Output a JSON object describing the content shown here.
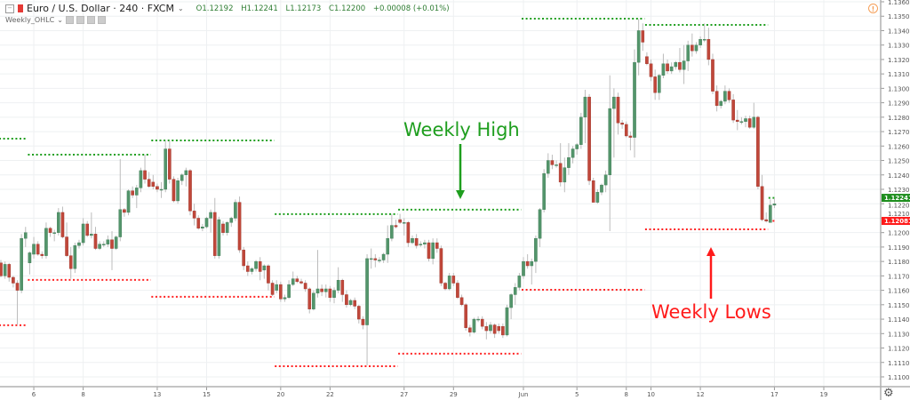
{
  "header": {
    "symbol": "Euro / U.S. Dollar · 240 · FXCM",
    "open": "O1.12192",
    "high": "H1.12241",
    "low": "L1.12173",
    "close": "C1.12200",
    "change": "+0.00008 (+0.01%)",
    "indicator": "Weekly_OHLC"
  },
  "colors": {
    "up": "#53956b",
    "down": "#c0473a",
    "weekly_high": "#1e9e1e",
    "weekly_low": "#ff2222",
    "grid": "#eef0f2"
  },
  "icons": {
    "warning": "warning-icon",
    "settings": "gear-icon"
  },
  "chart_data": {
    "type": "candlestick",
    "title": "",
    "ylim": [
      1.1095,
      1.1362
    ],
    "grid": true,
    "y_ticks": [
      "1.11000",
      "1.11100",
      "1.11200",
      "1.11300",
      "1.11400",
      "1.11500",
      "1.11600",
      "1.11700",
      "1.11800",
      "1.11900",
      "1.12000",
      "1.12100",
      "1.12200",
      "1.12300",
      "1.12400",
      "1.12500",
      "1.12600",
      "1.12700",
      "1.12800",
      "1.12900",
      "1.13000",
      "1.13100",
      "1.13200",
      "1.13300",
      "1.13400",
      "1.13500",
      "1.13600"
    ],
    "x_ticks": [
      {
        "label": "6",
        "bar": 9
      },
      {
        "label": "8",
        "bar": 21
      },
      {
        "label": "13",
        "bar": 39
      },
      {
        "label": "15",
        "bar": 51
      },
      {
        "label": "20",
        "bar": 69
      },
      {
        "label": "22",
        "bar": 81
      },
      {
        "label": "27",
        "bar": 99
      },
      {
        "label": "29",
        "bar": 111
      },
      {
        "label": "Jun",
        "bar": 128
      },
      {
        "label": "5",
        "bar": 141
      },
      {
        "label": "8",
        "bar": 153
      },
      {
        "label": "10",
        "bar": 159
      },
      {
        "label": "12",
        "bar": 171
      },
      {
        "label": "17",
        "bar": 189
      },
      {
        "label": "19",
        "bar": 201
      }
    ],
    "price_badges": [
      {
        "value": "1.12241",
        "color": "#1e8e1e"
      },
      {
        "value": "1.12081",
        "color": "#ff1a1a"
      }
    ],
    "ohlc": [
      [
        1.1179,
        1.1181,
        1.1169,
        1.117
      ],
      [
        1.117,
        1.118,
        1.1168,
        1.1178
      ],
      [
        1.1178,
        1.1179,
        1.1166,
        1.1169
      ],
      [
        1.1169,
        1.117,
        1.1162,
        1.1165
      ],
      [
        1.1165,
        1.1167,
        1.1136,
        1.116
      ],
      [
        1.116,
        1.1199,
        1.1158,
        1.1196
      ],
      [
        1.1196,
        1.1204,
        1.119,
        1.12
      ],
      [
        1.1179,
        1.1187,
        1.1171,
        1.1186
      ],
      [
        1.1185,
        1.1197,
        1.1182,
        1.1192
      ],
      [
        1.1192,
        1.1194,
        1.1184,
        1.1185
      ],
      [
        1.1185,
        1.1187,
        1.1182,
        1.1184
      ],
      [
        1.1184,
        1.1207,
        1.1182,
        1.1203
      ],
      [
        1.1203,
        1.1204,
        1.1197,
        1.12
      ],
      [
        1.12,
        1.1202,
        1.1194,
        1.12
      ],
      [
        1.12,
        1.1217,
        1.1198,
        1.1214
      ],
      [
        1.1214,
        1.1218,
        1.1196,
        1.1197
      ],
      [
        1.1197,
        1.1207,
        1.1183,
        1.1184
      ],
      [
        1.1184,
        1.119,
        1.1168,
        1.1175
      ],
      [
        1.1175,
        1.1193,
        1.1172,
        1.1191
      ],
      [
        1.1191,
        1.1195,
        1.1189,
        1.1193
      ],
      [
        1.1193,
        1.121,
        1.1191,
        1.1206
      ],
      [
        1.1206,
        1.1208,
        1.1197,
        1.1198
      ],
      [
        1.1198,
        1.1214,
        1.1196,
        1.1199
      ],
      [
        1.1199,
        1.1204,
        1.1188,
        1.1189
      ],
      [
        1.1189,
        1.1194,
        1.1188,
        1.1192
      ],
      [
        1.1192,
        1.1194,
        1.119,
        1.1192
      ],
      [
        1.1192,
        1.1198,
        1.119,
        1.1195
      ],
      [
        1.1195,
        1.1201,
        1.1174,
        1.1189
      ],
      [
        1.1189,
        1.1198,
        1.1188,
        1.1197
      ],
      [
        1.1197,
        1.1251,
        1.1194,
        1.1216
      ],
      [
        1.1216,
        1.1217,
        1.1211,
        1.1214
      ],
      [
        1.1214,
        1.123,
        1.1212,
        1.1229
      ],
      [
        1.1229,
        1.1232,
        1.1224,
        1.1226
      ],
      [
        1.1226,
        1.1233,
        1.1217,
        1.1231
      ],
      [
        1.1231,
        1.1245,
        1.1228,
        1.1243
      ],
      [
        1.1243,
        1.1254,
        1.1234,
        1.1237
      ],
      [
        1.1237,
        1.1242,
        1.1231,
        1.1232
      ],
      [
        1.1235,
        1.124,
        1.123,
        1.1232
      ],
      [
        1.1232,
        1.1234,
        1.1228,
        1.123
      ],
      [
        1.123,
        1.1235,
        1.1224,
        1.123
      ],
      [
        1.123,
        1.1264,
        1.1228,
        1.1258
      ],
      [
        1.1258,
        1.1264,
        1.1234,
        1.1237
      ],
      [
        1.1237,
        1.1239,
        1.1221,
        1.1222
      ],
      [
        1.1222,
        1.1238,
        1.122,
        1.1236
      ],
      [
        1.1236,
        1.1241,
        1.1233,
        1.124
      ],
      [
        1.124,
        1.1245,
        1.1232,
        1.1243
      ],
      [
        1.1243,
        1.1244,
        1.1212,
        1.1215
      ],
      [
        1.1215,
        1.122,
        1.1205,
        1.121
      ],
      [
        1.121,
        1.1212,
        1.1202,
        1.1203
      ],
      [
        1.1203,
        1.1206,
        1.1201,
        1.1204
      ],
      [
        1.1204,
        1.1211,
        1.1203,
        1.121
      ],
      [
        1.121,
        1.1216,
        1.12,
        1.1214
      ],
      [
        1.1214,
        1.1224,
        1.1182,
        1.1184
      ],
      [
        1.1184,
        1.1211,
        1.1182,
        1.1209
      ],
      [
        1.1206,
        1.1208,
        1.1198,
        1.12
      ],
      [
        1.12,
        1.1208,
        1.1198,
        1.1207
      ],
      [
        1.1207,
        1.1211,
        1.1204,
        1.121
      ],
      [
        1.121,
        1.1223,
        1.1208,
        1.1221
      ],
      [
        1.1221,
        1.1225,
        1.1186,
        1.1188
      ],
      [
        1.1188,
        1.119,
        1.1174,
        1.1177
      ],
      [
        1.1177,
        1.118,
        1.117,
        1.1173
      ],
      [
        1.1173,
        1.1176,
        1.1171,
        1.1175
      ],
      [
        1.1175,
        1.1181,
        1.1173,
        1.118
      ],
      [
        1.118,
        1.1183,
        1.1167,
        1.1173
      ],
      [
        1.1174,
        1.1178,
        1.1168,
        1.1177
      ],
      [
        1.1177,
        1.1178,
        1.116,
        1.1165
      ],
      [
        1.1165,
        1.1167,
        1.1156,
        1.1157
      ],
      [
        1.116,
        1.1167,
        1.1158,
        1.1164
      ],
      [
        1.1164,
        1.1166,
        1.1152,
        1.1154
      ],
      [
        1.1154,
        1.1157,
        1.1152,
        1.1155
      ],
      [
        1.1155,
        1.1167,
        1.1154,
        1.1164
      ],
      [
        1.1164,
        1.1173,
        1.1163,
        1.1168
      ],
      [
        1.1168,
        1.117,
        1.1165,
        1.1166
      ],
      [
        1.1166,
        1.1168,
        1.1164,
        1.1165
      ],
      [
        1.1165,
        1.1167,
        1.1159,
        1.1161
      ],
      [
        1.1161,
        1.1162,
        1.1144,
        1.1147
      ],
      [
        1.1147,
        1.116,
        1.1146,
        1.1158
      ],
      [
        1.1158,
        1.1188,
        1.1155,
        1.1161
      ],
      [
        1.1161,
        1.1164,
        1.1156,
        1.1159
      ],
      [
        1.1159,
        1.1164,
        1.1155,
        1.1161
      ],
      [
        1.1161,
        1.1163,
        1.1152,
        1.1155
      ],
      [
        1.1155,
        1.1162,
        1.1151,
        1.116
      ],
      [
        1.116,
        1.1176,
        1.1158,
        1.1167
      ],
      [
        1.1167,
        1.1168,
        1.1152,
        1.1157
      ],
      [
        1.1157,
        1.116,
        1.1148,
        1.115
      ],
      [
        1.115,
        1.1154,
        1.1149,
        1.1153
      ],
      [
        1.1153,
        1.1155,
        1.1147,
        1.1149
      ],
      [
        1.1149,
        1.115,
        1.1137,
        1.114
      ],
      [
        1.114,
        1.1142,
        1.1133,
        1.1136
      ],
      [
        1.1136,
        1.1185,
        1.1108,
        1.1182
      ],
      [
        1.1182,
        1.1189,
        1.1175,
        1.1182
      ],
      [
        1.1182,
        1.1185,
        1.1176,
        1.1181
      ],
      [
        1.1181,
        1.1183,
        1.1179,
        1.1181
      ],
      [
        1.1181,
        1.1186,
        1.1179,
        1.1185
      ],
      [
        1.1185,
        1.1205,
        1.1179,
        1.1196
      ],
      [
        1.1196,
        1.1213,
        1.1194,
        1.1205
      ],
      [
        1.1205,
        1.1209,
        1.1203,
        1.1204
      ],
      [
        1.1209,
        1.1213,
        1.1206,
        1.1207
      ],
      [
        1.1207,
        1.121,
        1.1198,
        1.1207
      ],
      [
        1.1207,
        1.1208,
        1.119,
        1.1193
      ],
      [
        1.1193,
        1.1198,
        1.1192,
        1.1196
      ],
      [
        1.1196,
        1.1199,
        1.1189,
        1.1191
      ],
      [
        1.1192,
        1.1194,
        1.119,
        1.1192
      ],
      [
        1.1192,
        1.1195,
        1.1189,
        1.1193
      ],
      [
        1.1193,
        1.1195,
        1.118,
        1.1182
      ],
      [
        1.1182,
        1.1196,
        1.1178,
        1.1193
      ],
      [
        1.1193,
        1.1196,
        1.1186,
        1.1189
      ],
      [
        1.1189,
        1.1191,
        1.1163,
        1.1165
      ],
      [
        1.1165,
        1.1166,
        1.116,
        1.1161
      ],
      [
        1.1161,
        1.1172,
        1.116,
        1.117
      ],
      [
        1.117,
        1.1172,
        1.1163,
        1.1165
      ],
      [
        1.1165,
        1.1167,
        1.1154,
        1.1155
      ],
      [
        1.1155,
        1.1157,
        1.1149,
        1.115
      ],
      [
        1.115,
        1.1151,
        1.1132,
        1.1134
      ],
      [
        1.1134,
        1.1136,
        1.1128,
        1.1131
      ],
      [
        1.1131,
        1.1141,
        1.113,
        1.114
      ],
      [
        1.114,
        1.1142,
        1.1138,
        1.114
      ],
      [
        1.114,
        1.1142,
        1.1133,
        1.1135
      ],
      [
        1.1135,
        1.1138,
        1.1126,
        1.1132
      ],
      [
        1.1132,
        1.1138,
        1.113,
        1.1136
      ],
      [
        1.1136,
        1.1137,
        1.1127,
        1.113
      ],
      [
        1.1135,
        1.1137,
        1.113,
        1.1132
      ],
      [
        1.1135,
        1.1137,
        1.1127,
        1.1129
      ],
      [
        1.1129,
        1.115,
        1.1128,
        1.1148
      ],
      [
        1.1148,
        1.1158,
        1.114,
        1.1157
      ],
      [
        1.1157,
        1.1165,
        1.115,
        1.1162
      ],
      [
        1.1162,
        1.1172,
        1.116,
        1.117
      ],
      [
        1.117,
        1.1183,
        1.1168,
        1.118
      ],
      [
        1.118,
        1.1185,
        1.1175,
        1.1177
      ],
      [
        1.1177,
        1.1182,
        1.1164,
        1.118
      ],
      [
        1.118,
        1.1198,
        1.1172,
        1.1196
      ],
      [
        1.1196,
        1.1217,
        1.119,
        1.1216
      ],
      [
        1.1216,
        1.1244,
        1.1214,
        1.1241
      ],
      [
        1.1241,
        1.1255,
        1.1238,
        1.125
      ],
      [
        1.125,
        1.1254,
        1.1244,
        1.1247
      ],
      [
        1.1247,
        1.125,
        1.1245,
        1.1247
      ],
      [
        1.1248,
        1.1262,
        1.1232,
        1.1235
      ],
      [
        1.1235,
        1.1252,
        1.1228,
        1.1245
      ],
      [
        1.1245,
        1.1262,
        1.124,
        1.1252
      ],
      [
        1.1252,
        1.126,
        1.1248,
        1.1258
      ],
      [
        1.1258,
        1.1262,
        1.1254,
        1.1261
      ],
      [
        1.1261,
        1.1283,
        1.1258,
        1.128
      ],
      [
        1.128,
        1.1299,
        1.1262,
        1.1294
      ],
      [
        1.1294,
        1.1296,
        1.1233,
        1.1236
      ],
      [
        1.1236,
        1.1238,
        1.1221,
        1.1221
      ],
      [
        1.1221,
        1.123,
        1.122,
        1.1228
      ],
      [
        1.1228,
        1.1234,
        1.1226,
        1.1233
      ],
      [
        1.1233,
        1.1243,
        1.1228,
        1.124
      ],
      [
        1.124,
        1.1309,
        1.1201,
        1.1286
      ],
      [
        1.1286,
        1.13,
        1.1252,
        1.1294
      ],
      [
        1.1294,
        1.1297,
        1.1268,
        1.1276
      ],
      [
        1.1276,
        1.1278,
        1.1272,
        1.1275
      ],
      [
        1.1275,
        1.1277,
        1.1266,
        1.1267
      ],
      [
        1.1267,
        1.127,
        1.1257,
        1.1266
      ],
      [
        1.1266,
        1.1327,
        1.1252,
        1.1318
      ],
      [
        1.1318,
        1.1348,
        1.1309,
        1.134
      ],
      [
        1.134,
        1.1345,
        1.1326,
        1.1332
      ],
      [
        1.1322,
        1.1325,
        1.1316,
        1.1317
      ],
      [
        1.1317,
        1.132,
        1.1305,
        1.1308
      ],
      [
        1.1308,
        1.1313,
        1.1292,
        1.1297
      ],
      [
        1.1297,
        1.131,
        1.1292,
        1.1309
      ],
      [
        1.1309,
        1.1324,
        1.1307,
        1.1317
      ],
      [
        1.1317,
        1.132,
        1.131,
        1.1312
      ],
      [
        1.1312,
        1.1318,
        1.131,
        1.1315
      ],
      [
        1.1315,
        1.1319,
        1.1313,
        1.1318
      ],
      [
        1.1318,
        1.1328,
        1.1311,
        1.1313
      ],
      [
        1.1313,
        1.133,
        1.1303,
        1.1319
      ],
      [
        1.1319,
        1.1333,
        1.1312,
        1.133
      ],
      [
        1.133,
        1.1338,
        1.1322,
        1.1326
      ],
      [
        1.1326,
        1.1332,
        1.1324,
        1.133
      ],
      [
        1.133,
        1.1336,
        1.1328,
        1.1334
      ],
      [
        1.1334,
        1.1345,
        1.1332,
        1.1334
      ],
      [
        1.1334,
        1.1342,
        1.1316,
        1.132
      ],
      [
        1.132,
        1.1324,
        1.1296,
        1.1298
      ],
      [
        1.1298,
        1.1302,
        1.1284,
        1.1288
      ],
      [
        1.1288,
        1.1292,
        1.1286,
        1.1291
      ],
      [
        1.1291,
        1.1302,
        1.1289,
        1.1298
      ],
      [
        1.1298,
        1.13,
        1.129,
        1.1292
      ],
      [
        1.1292,
        1.1296,
        1.1276,
        1.1278
      ],
      [
        1.1278,
        1.1285,
        1.1271,
        1.1277
      ],
      [
        1.1277,
        1.128,
        1.1275,
        1.1277
      ],
      [
        1.1277,
        1.1281,
        1.1273,
        1.1279
      ],
      [
        1.1279,
        1.1281,
        1.1272,
        1.1273
      ],
      [
        1.1273,
        1.129,
        1.1272,
        1.128
      ],
      [
        1.128,
        1.1281,
        1.123,
        1.1232
      ],
      [
        1.1232,
        1.124,
        1.1208,
        1.1209
      ],
      [
        1.1209,
        1.1214,
        1.1207,
        1.1208
      ],
      [
        1.1207,
        1.1223,
        1.1207,
        1.1219
      ],
      [
        1.1219,
        1.1224,
        1.1217,
        1.122
      ]
    ],
    "weekly_highs": [
      {
        "price": 1.12651,
        "from": 1,
        "to": 7
      },
      {
        "price": 1.1254,
        "from": 8,
        "to": 37
      },
      {
        "price": 1.12639,
        "from": 38,
        "to": 67
      },
      {
        "price": 1.12128,
        "from": 68,
        "to": 97
      },
      {
        "price": 1.12159,
        "from": 98,
        "to": 127
      },
      {
        "price": 1.13483,
        "from": 128,
        "to": 157
      },
      {
        "price": 1.1344,
        "from": 158,
        "to": 187
      },
      {
        "price": 1.12241,
        "from": 188,
        "to": 189
      }
    ],
    "weekly_lows": [
      {
        "price": 1.11358,
        "from": 1,
        "to": 7
      },
      {
        "price": 1.11672,
        "from": 8,
        "to": 37
      },
      {
        "price": 1.11555,
        "from": 38,
        "to": 67
      },
      {
        "price": 1.11074,
        "from": 68,
        "to": 97
      },
      {
        "price": 1.11161,
        "from": 98,
        "to": 127
      },
      {
        "price": 1.11604,
        "from": 128,
        "to": 157
      },
      {
        "price": 1.12023,
        "from": 158,
        "to": 187
      },
      {
        "price": 1.12081,
        "from": 188,
        "to": 189
      }
    ],
    "annotations": [
      {
        "text": "Weekly High",
        "color": "#1e9e1e",
        "arrow": "down"
      },
      {
        "text": "Weekly Lows",
        "color": "#ff1a1a",
        "arrow": "up"
      }
    ]
  }
}
